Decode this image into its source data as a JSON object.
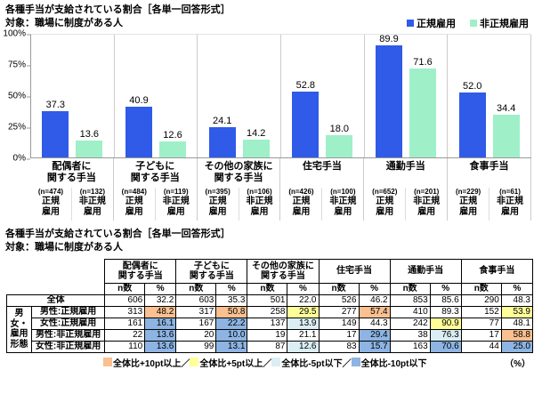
{
  "chart": {
    "title": "各種手当が支給されている割合［各単一回答形式］",
    "subtitle": "対象：職場に制度がある人",
    "legend": [
      {
        "label": "正規雇用",
        "color": "#2F5BE8"
      },
      {
        "label": "非正規雇用",
        "color": "#9FF0C8"
      }
    ],
    "y_ticks": [
      "100%",
      "75%",
      "50%",
      "25%",
      "0%"
    ],
    "categories": [
      {
        "label": "配偶者に\n関する手当",
        "regular": {
          "n": "(n=474)",
          "role": "正規\n雇用",
          "value": "37.3"
        },
        "nonregular": {
          "n": "(n=132)",
          "role": "非正規\n雇用",
          "value": "13.6"
        }
      },
      {
        "label": "子どもに\n関する手当",
        "regular": {
          "n": "(n=484)",
          "role": "正規\n雇用",
          "value": "40.9"
        },
        "nonregular": {
          "n": "(n=119)",
          "role": "非正規\n雇用",
          "value": "12.6"
        }
      },
      {
        "label": "その他の家族に\n関する手当",
        "regular": {
          "n": "(n=395)",
          "role": "正規\n雇用",
          "value": "24.1"
        },
        "nonregular": {
          "n": "(n=106)",
          "role": "非正規\n雇用",
          "value": "14.2"
        }
      },
      {
        "label": "住宅手当",
        "regular": {
          "n": "(n=426)",
          "role": "正規\n雇用",
          "value": "52.8"
        },
        "nonregular": {
          "n": "(n=100)",
          "role": "非正規\n雇用",
          "value": "18.0"
        }
      },
      {
        "label": "通勤手当",
        "regular": {
          "n": "(n=652)",
          "role": "正規\n雇用",
          "value": "89.9"
        },
        "nonregular": {
          "n": "(n=201)",
          "role": "非正規\n雇用",
          "value": "71.6"
        }
      },
      {
        "label": "食事手当",
        "regular": {
          "n": "(n=229)",
          "role": "正規\n雇用",
          "value": "52.0"
        },
        "nonregular": {
          "n": "(n=61)",
          "role": "非正規\n雇用",
          "value": "34.4"
        }
      }
    ]
  },
  "chart_data": {
    "type": "bar",
    "title": "各種手当が支給されている割合［各単一回答形式］",
    "subtitle": "対象：職場に制度がある人",
    "categories": [
      "配偶者に関する手当",
      "子どもに関する手当",
      "その他の家族に関する手当",
      "住宅手当",
      "通勤手当",
      "食事手当"
    ],
    "series": [
      {
        "name": "正規雇用",
        "values": [
          37.3,
          40.9,
          24.1,
          52.8,
          89.9,
          52.0
        ],
        "n": [
          474,
          484,
          395,
          426,
          652,
          229
        ]
      },
      {
        "name": "非正規雇用",
        "values": [
          13.6,
          12.6,
          14.2,
          18.0,
          71.6,
          34.4
        ],
        "n": [
          132,
          119,
          106,
          100,
          201,
          61
        ]
      }
    ],
    "ylabel": "%",
    "ylim": [
      0,
      100
    ],
    "legend_position": "top-right",
    "grid": false
  },
  "table": {
    "title": "各種手当が支給されている割合［各単一回答形式］",
    "subtitle": "対象：職場に制度がある人",
    "columns": [
      {
        "label": "配偶者に\n関する手当"
      },
      {
        "label": "子どもに\n関する手当"
      },
      {
        "label": "その他の家族に\n関する手当"
      },
      {
        "label": "住宅手当"
      },
      {
        "label": "通勤手当"
      },
      {
        "label": "食事手当"
      }
    ],
    "sub_n": "n数",
    "sub_p": "%",
    "group_label": "男女・\n雇用\n形態",
    "highlight_colors": {
      "plus10": "#FAC090",
      "plus5": "#FFFF99",
      "minus5": "#DAEEF3",
      "minus10": "#8DB4E2"
    },
    "rows": [
      {
        "label": "全体",
        "cells": [
          {
            "n": "606",
            "p": "32.2",
            "hl": ""
          },
          {
            "n": "603",
            "p": "35.3",
            "hl": ""
          },
          {
            "n": "501",
            "p": "22.0",
            "hl": ""
          },
          {
            "n": "526",
            "p": "46.2",
            "hl": ""
          },
          {
            "n": "853",
            "p": "85.6",
            "hl": ""
          },
          {
            "n": "290",
            "p": "48.3",
            "hl": ""
          }
        ]
      },
      {
        "label": "男性:正規雇用",
        "cells": [
          {
            "n": "313",
            "p": "48.2",
            "hl": "plus10"
          },
          {
            "n": "317",
            "p": "50.8",
            "hl": "plus10"
          },
          {
            "n": "258",
            "p": "29.5",
            "hl": "plus5"
          },
          {
            "n": "277",
            "p": "57.4",
            "hl": "plus10"
          },
          {
            "n": "410",
            "p": "89.3",
            "hl": ""
          },
          {
            "n": "152",
            "p": "53.9",
            "hl": "plus5"
          }
        ]
      },
      {
        "label": "女性:正規雇用",
        "cells": [
          {
            "n": "161",
            "p": "16.1",
            "hl": "minus10"
          },
          {
            "n": "167",
            "p": "22.2",
            "hl": "minus10"
          },
          {
            "n": "137",
            "p": "13.9",
            "hl": "minus5"
          },
          {
            "n": "149",
            "p": "44.3",
            "hl": ""
          },
          {
            "n": "242",
            "p": "90.9",
            "hl": "plus5"
          },
          {
            "n": "77",
            "p": "48.1",
            "hl": ""
          }
        ]
      },
      {
        "label": "男性:非正規雇用",
        "cells": [
          {
            "n": "22",
            "p": "13.6",
            "hl": "minus10"
          },
          {
            "n": "20",
            "p": "10.0",
            "hl": "minus10"
          },
          {
            "n": "19",
            "p": "21.1",
            "hl": ""
          },
          {
            "n": "17",
            "p": "29.4",
            "hl": "minus10"
          },
          {
            "n": "38",
            "p": "76.3",
            "hl": "minus5"
          },
          {
            "n": "17",
            "p": "58.8",
            "hl": "plus10"
          }
        ]
      },
      {
        "label": "女性:非正規雇用",
        "cells": [
          {
            "n": "110",
            "p": "13.6",
            "hl": "minus10"
          },
          {
            "n": "99",
            "p": "13.1",
            "hl": "minus10"
          },
          {
            "n": "87",
            "p": "12.6",
            "hl": "minus5"
          },
          {
            "n": "83",
            "p": "15.7",
            "hl": "minus10"
          },
          {
            "n": "163",
            "p": "70.6",
            "hl": "minus10"
          },
          {
            "n": "44",
            "p": "25.0",
            "hl": "minus10"
          }
        ]
      }
    ]
  },
  "table_legend": {
    "items": [
      {
        "label": "全体比+10pt以上／",
        "color": "#FAC090"
      },
      {
        "label": "全体比+5pt以上／",
        "color": "#FFFF99"
      },
      {
        "label": "全体比-5pt以下／",
        "color": "#DAEEF3"
      },
      {
        "label": "全体比-10pt以下",
        "color": "#8DB4E2"
      }
    ],
    "unit": "（%）"
  }
}
